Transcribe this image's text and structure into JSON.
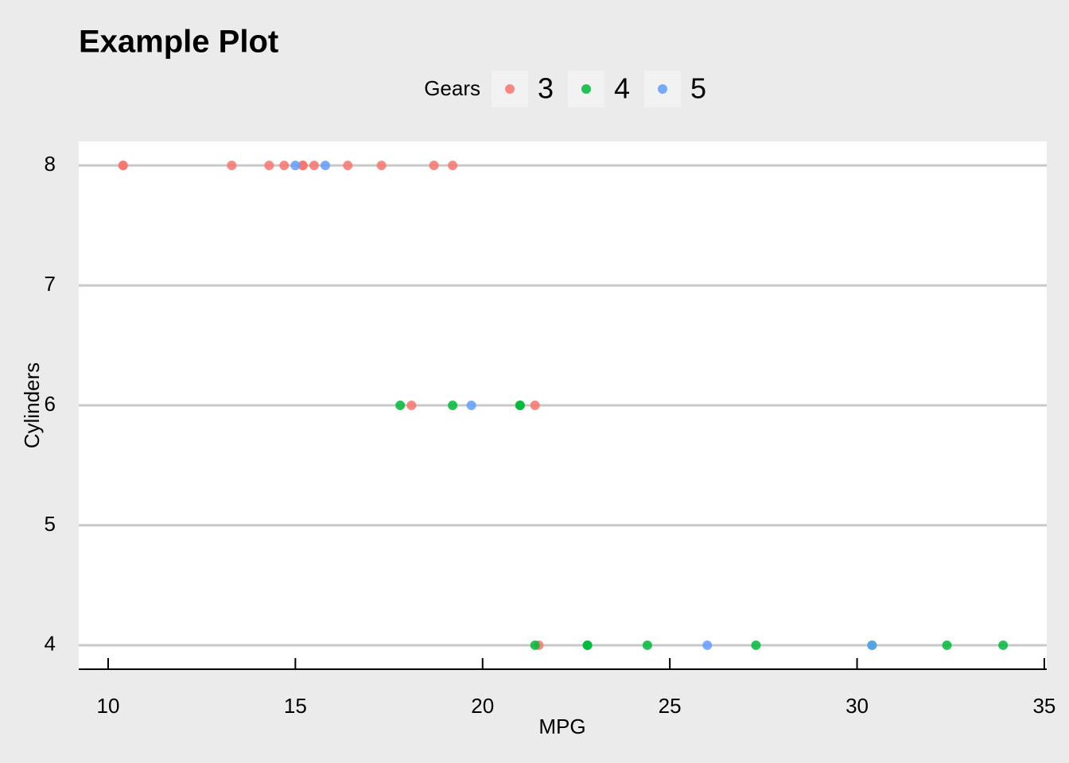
{
  "chart_data": {
    "type": "scatter",
    "title": "Example Plot",
    "x_label": "MPG",
    "y_label": "Cylinders",
    "legend_title": "Gears",
    "legend_position": "top",
    "grid": true,
    "xlim": [
      9.215,
      35.065
    ],
    "xticks": [
      10,
      15,
      20,
      25,
      30,
      35
    ],
    "ylim": [
      3.8,
      8.2
    ],
    "yticks": [
      4,
      5,
      6,
      7,
      8
    ],
    "series": [
      {
        "name": "3",
        "color": "#F8766D",
        "x": [
          21.4,
          18.7,
          18.1,
          14.3,
          16.4,
          17.3,
          15.2,
          10.4,
          10.4,
          14.7,
          21.5,
          15.5,
          15.2,
          13.3,
          19.2
        ],
        "values": [
          6,
          8,
          6,
          8,
          8,
          8,
          8,
          8,
          8,
          8,
          4,
          8,
          8,
          8,
          8
        ]
      },
      {
        "name": "4",
        "color": "#00BA38",
        "x": [
          21.0,
          21.0,
          22.8,
          24.4,
          22.8,
          19.2,
          17.8,
          32.4,
          30.4,
          33.9,
          27.3,
          21.4
        ],
        "values": [
          6,
          6,
          4,
          4,
          4,
          6,
          6,
          4,
          4,
          4,
          4,
          4
        ]
      },
      {
        "name": "5",
        "color": "#619CFF",
        "x": [
          26.0,
          30.4,
          15.8,
          19.7,
          15.0
        ],
        "values": [
          4,
          4,
          8,
          6,
          8
        ]
      }
    ]
  }
}
